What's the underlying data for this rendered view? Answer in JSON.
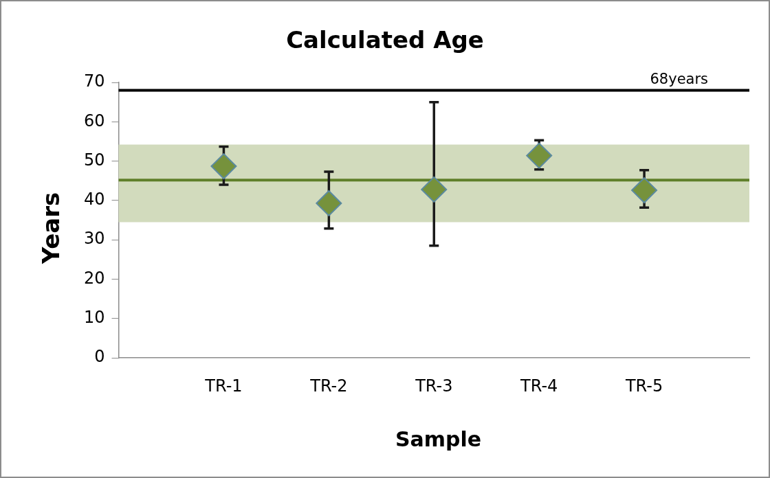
{
  "chart_data": {
    "type": "scatter",
    "title": "Calculated Age",
    "xlabel": "Sample",
    "ylabel": "Years",
    "categories": [
      null,
      "TR-1",
      "TR-2",
      "TR-3",
      "TR-4",
      "TR-5",
      null
    ],
    "series": [
      {
        "color": "#76923c",
        "values": [
          null,
          48.7,
          39.3,
          42.8,
          51.4,
          42.6,
          null
        ],
        "errors": [
          null,
          [
            44.0,
            53.7
          ],
          [
            32.9,
            47.3
          ],
          [
            28.5,
            65.0
          ],
          [
            47.9,
            55.3
          ],
          [
            38.2,
            47.7
          ],
          null
        ]
      }
    ],
    "ylim": [
      0,
      70
    ],
    "yticks": [
      0,
      10,
      20,
      30,
      40,
      50,
      60,
      70
    ],
    "ref_lines": [
      {
        "axis": "y",
        "value": 68,
        "label": "68years",
        "color": "#000000"
      },
      {
        "axis": "y",
        "value": 45.2,
        "color": "#5f7f2a"
      }
    ],
    "bands": [
      {
        "axis": "y",
        "from": 34.5,
        "to": 54.2,
        "color": "#d2dbbd"
      }
    ],
    "grid": false,
    "legend": false,
    "marker": "diamond"
  }
}
